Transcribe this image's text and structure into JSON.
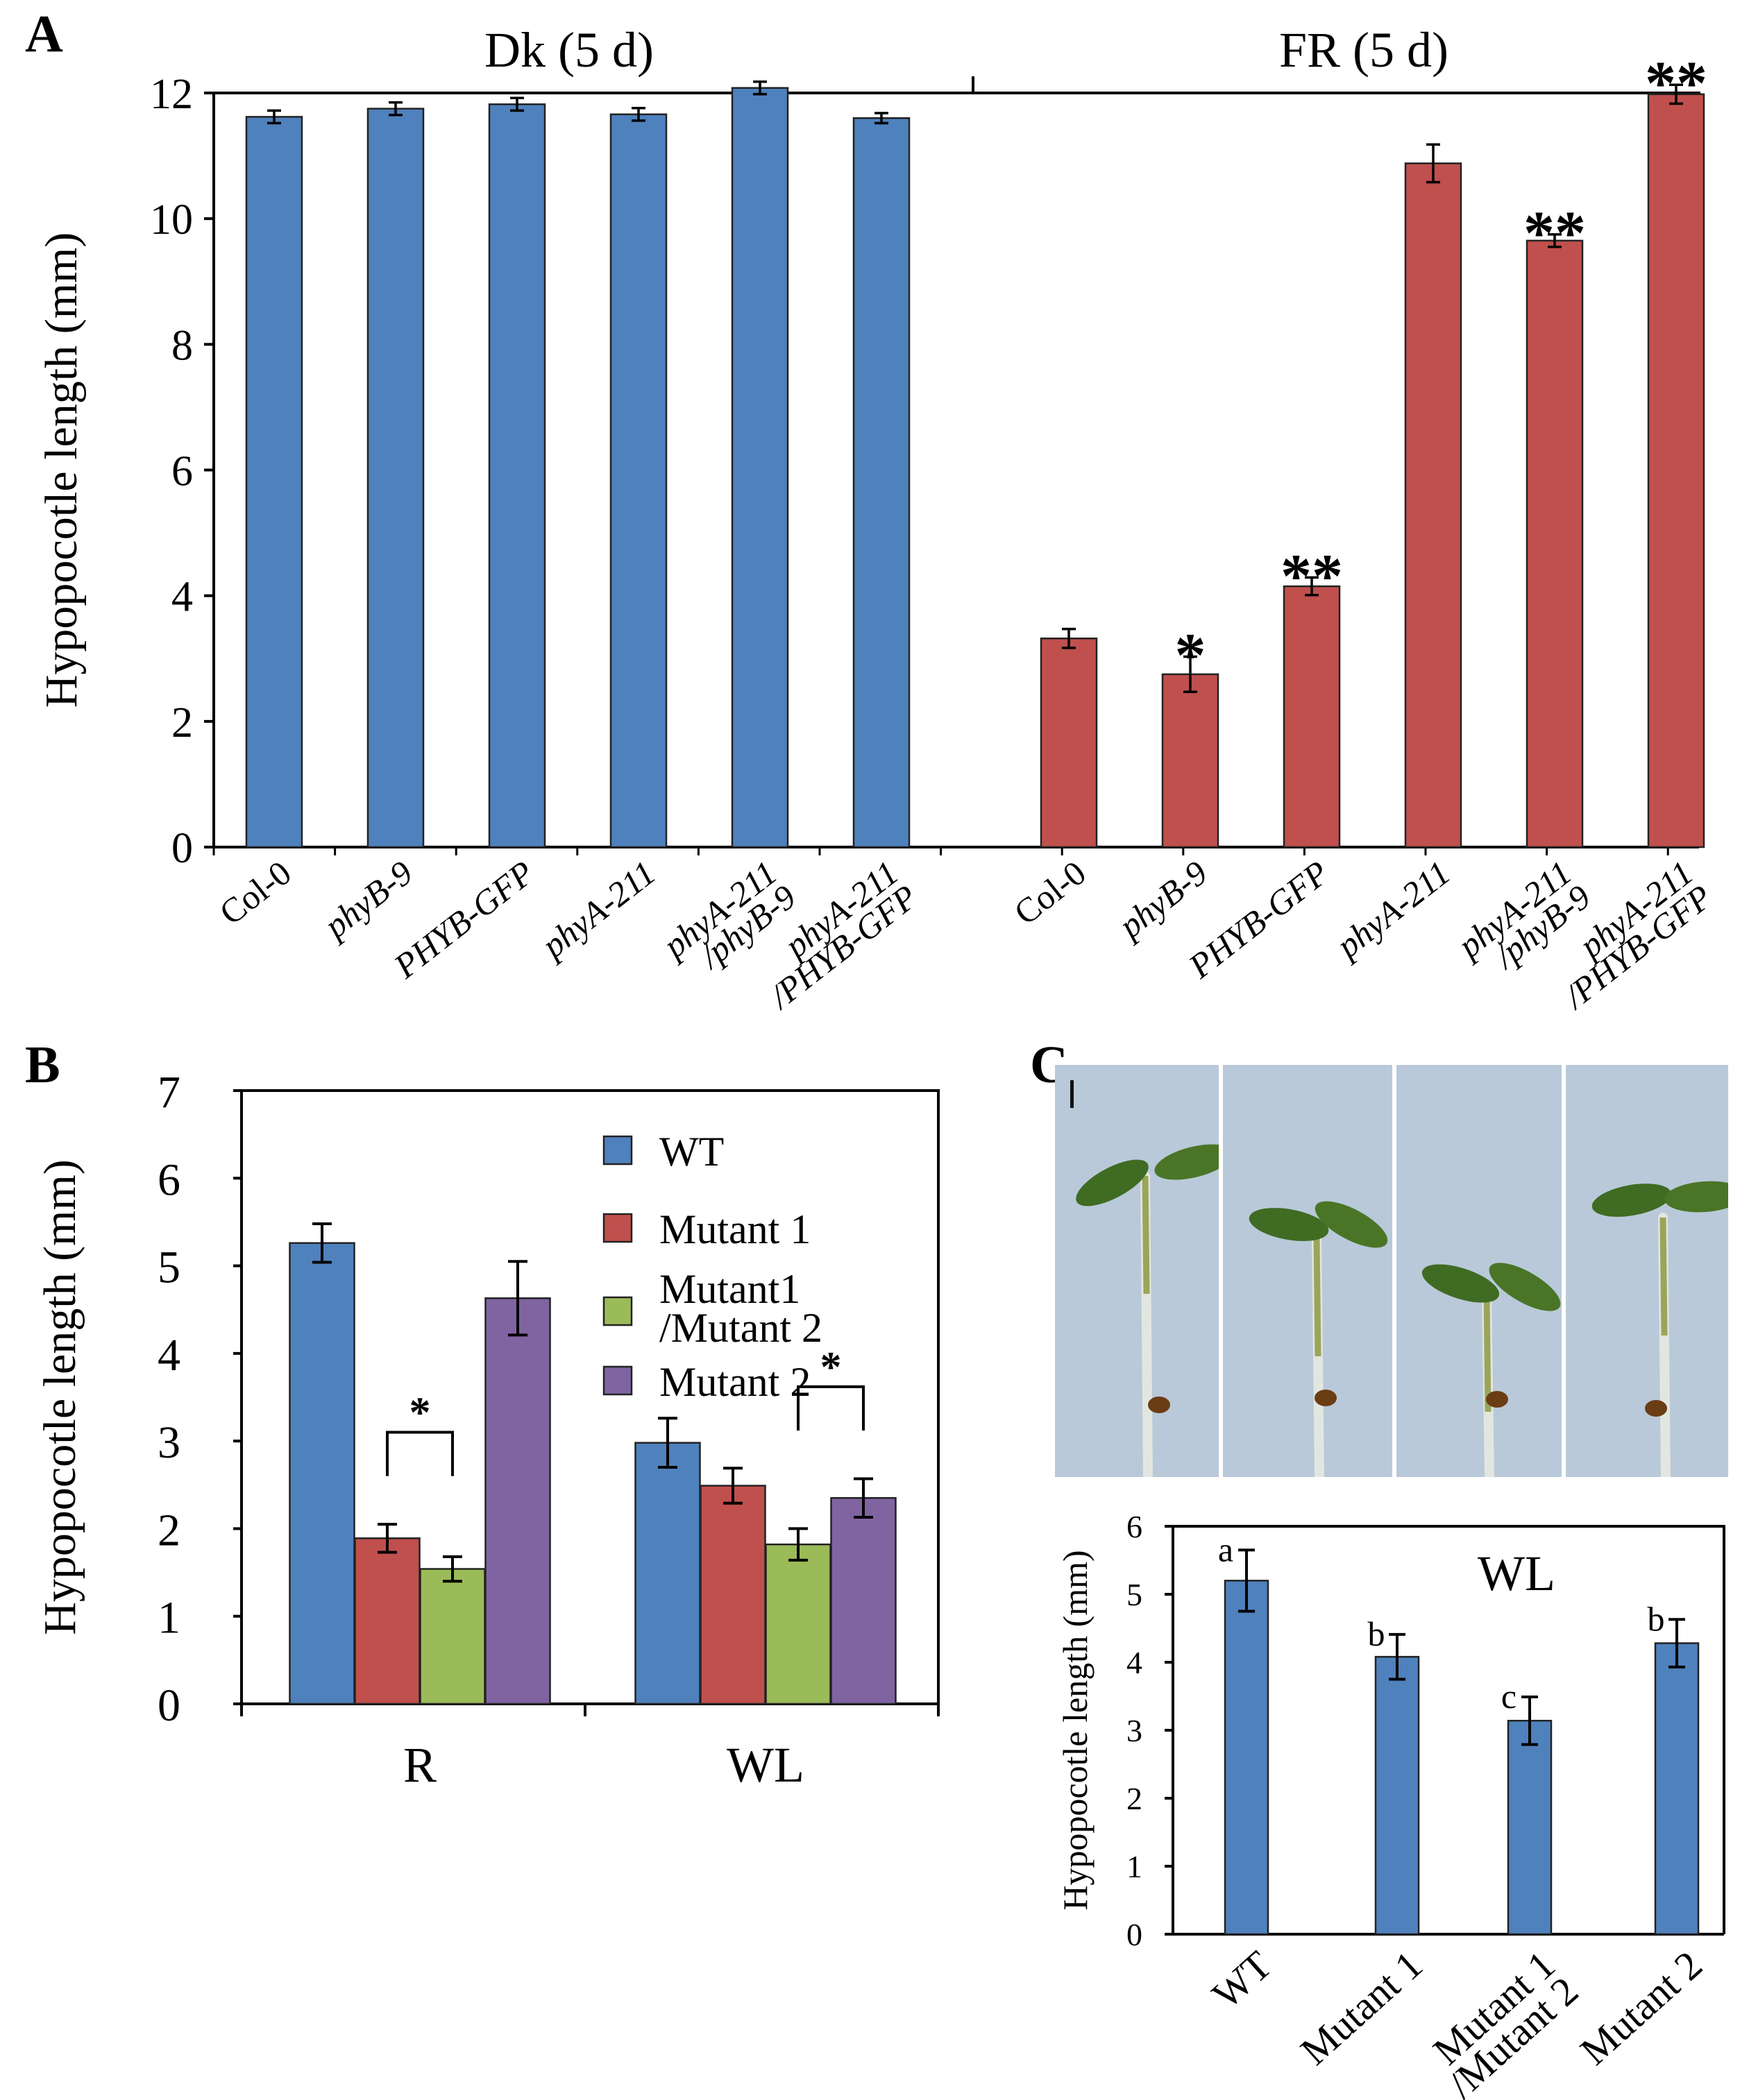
{
  "chart_data": [
    {
      "panel": "A",
      "type": "bar",
      "ylabel": "Hypopocotle length (mm)",
      "ylim": [
        0,
        12
      ],
      "yticks": [
        0,
        2,
        4,
        6,
        8,
        10,
        12
      ],
      "groups": [
        {
          "name": "Dk (5 d)",
          "color": "#4f81bd",
          "bars": [
            {
              "label": "Col-0",
              "italic": false,
              "value": 11.62,
              "err": 0.1,
              "mark": ""
            },
            {
              "label": "phyB-9",
              "italic": true,
              "value": 11.75,
              "err": 0.1,
              "mark": ""
            },
            {
              "label": "PHYB-GFP",
              "italic": true,
              "value": 11.82,
              "err": 0.1,
              "mark": ""
            },
            {
              "label": "phyA-211",
              "italic": true,
              "value": 11.66,
              "err": 0.1,
              "mark": ""
            },
            {
              "label": "phyA-211\n/phyB-9",
              "italic": true,
              "value": 12.08,
              "err": 0.1,
              "mark": ""
            },
            {
              "label": "phyA-211\n/PHYB-GFP",
              "italic": true,
              "value": 11.6,
              "err": 0.08,
              "mark": ""
            }
          ]
        },
        {
          "name": "FR (5 d)",
          "color": "#c0504d",
          "bars": [
            {
              "label": "Col-0",
              "italic": false,
              "value": 3.32,
              "err": 0.15,
              "mark": ""
            },
            {
              "label": "phyB-9",
              "italic": true,
              "value": 2.75,
              "err": 0.28,
              "mark": "*"
            },
            {
              "label": "PHYB-GFP",
              "italic": true,
              "value": 4.15,
              "err": 0.14,
              "mark": "**"
            },
            {
              "label": "phyA-211",
              "italic": true,
              "value": 10.88,
              "err": 0.3,
              "mark": ""
            },
            {
              "label": "phyA-211\n/phyB-9",
              "italic": true,
              "value": 9.65,
              "err": 0.1,
              "mark": "**"
            },
            {
              "label": "phyA-211\n/PHYB-GFP",
              "italic": true,
              "value": 11.98,
              "err": 0.15,
              "mark": "**"
            }
          ]
        }
      ]
    },
    {
      "panel": "B",
      "type": "bar",
      "ylabel": "Hypopocotle length (mm)",
      "ylim": [
        0,
        7
      ],
      "yticks": [
        0,
        1,
        2,
        3,
        4,
        5,
        6,
        7
      ],
      "categories": [
        "R",
        "WL"
      ],
      "legend_position": "top-right",
      "series": [
        {
          "name": "WT",
          "color": "#4f81bd",
          "values": [
            5.26,
            2.98
          ],
          "err": [
            0.22,
            0.28
          ]
        },
        {
          "name": "Mutant 1",
          "color": "#c0504d",
          "values": [
            1.89,
            2.49
          ],
          "err": [
            0.16,
            0.2
          ]
        },
        {
          "name": "Mutant1\n/Mutant 2",
          "color": "#9bbb59",
          "values": [
            1.54,
            1.82
          ],
          "err": [
            0.14,
            0.18
          ]
        },
        {
          "name": "Mutant 2",
          "color": "#8064a2",
          "values": [
            4.63,
            2.35
          ],
          "err": [
            0.42,
            0.22
          ]
        }
      ],
      "significance": [
        {
          "category": "R",
          "between": [
            "Mutant 1",
            "Mutant1\n/Mutant 2"
          ],
          "mark": "*"
        },
        {
          "category": "WL",
          "between": [
            "Mutant1\n/Mutant 2",
            "Mutant 2"
          ],
          "mark": "*"
        }
      ]
    },
    {
      "panel": "C",
      "type": "bar",
      "title": "WL",
      "ylabel": "Hypopocotle length (mm)",
      "ylim": [
        0,
        6
      ],
      "yticks": [
        0,
        1,
        2,
        3,
        4,
        5,
        6
      ],
      "color": "#4f81bd",
      "categories": [
        "WT",
        "Mutant 1",
        "Mutant 1\n/Mutant 2",
        "Mutant 2"
      ],
      "values": [
        5.2,
        4.08,
        3.14,
        4.28
      ],
      "err": [
        0.45,
        0.33,
        0.35,
        0.35
      ],
      "letters": [
        "a",
        "b",
        "c",
        "b"
      ]
    }
  ],
  "panel_labels": [
    "A",
    "B",
    "C"
  ]
}
